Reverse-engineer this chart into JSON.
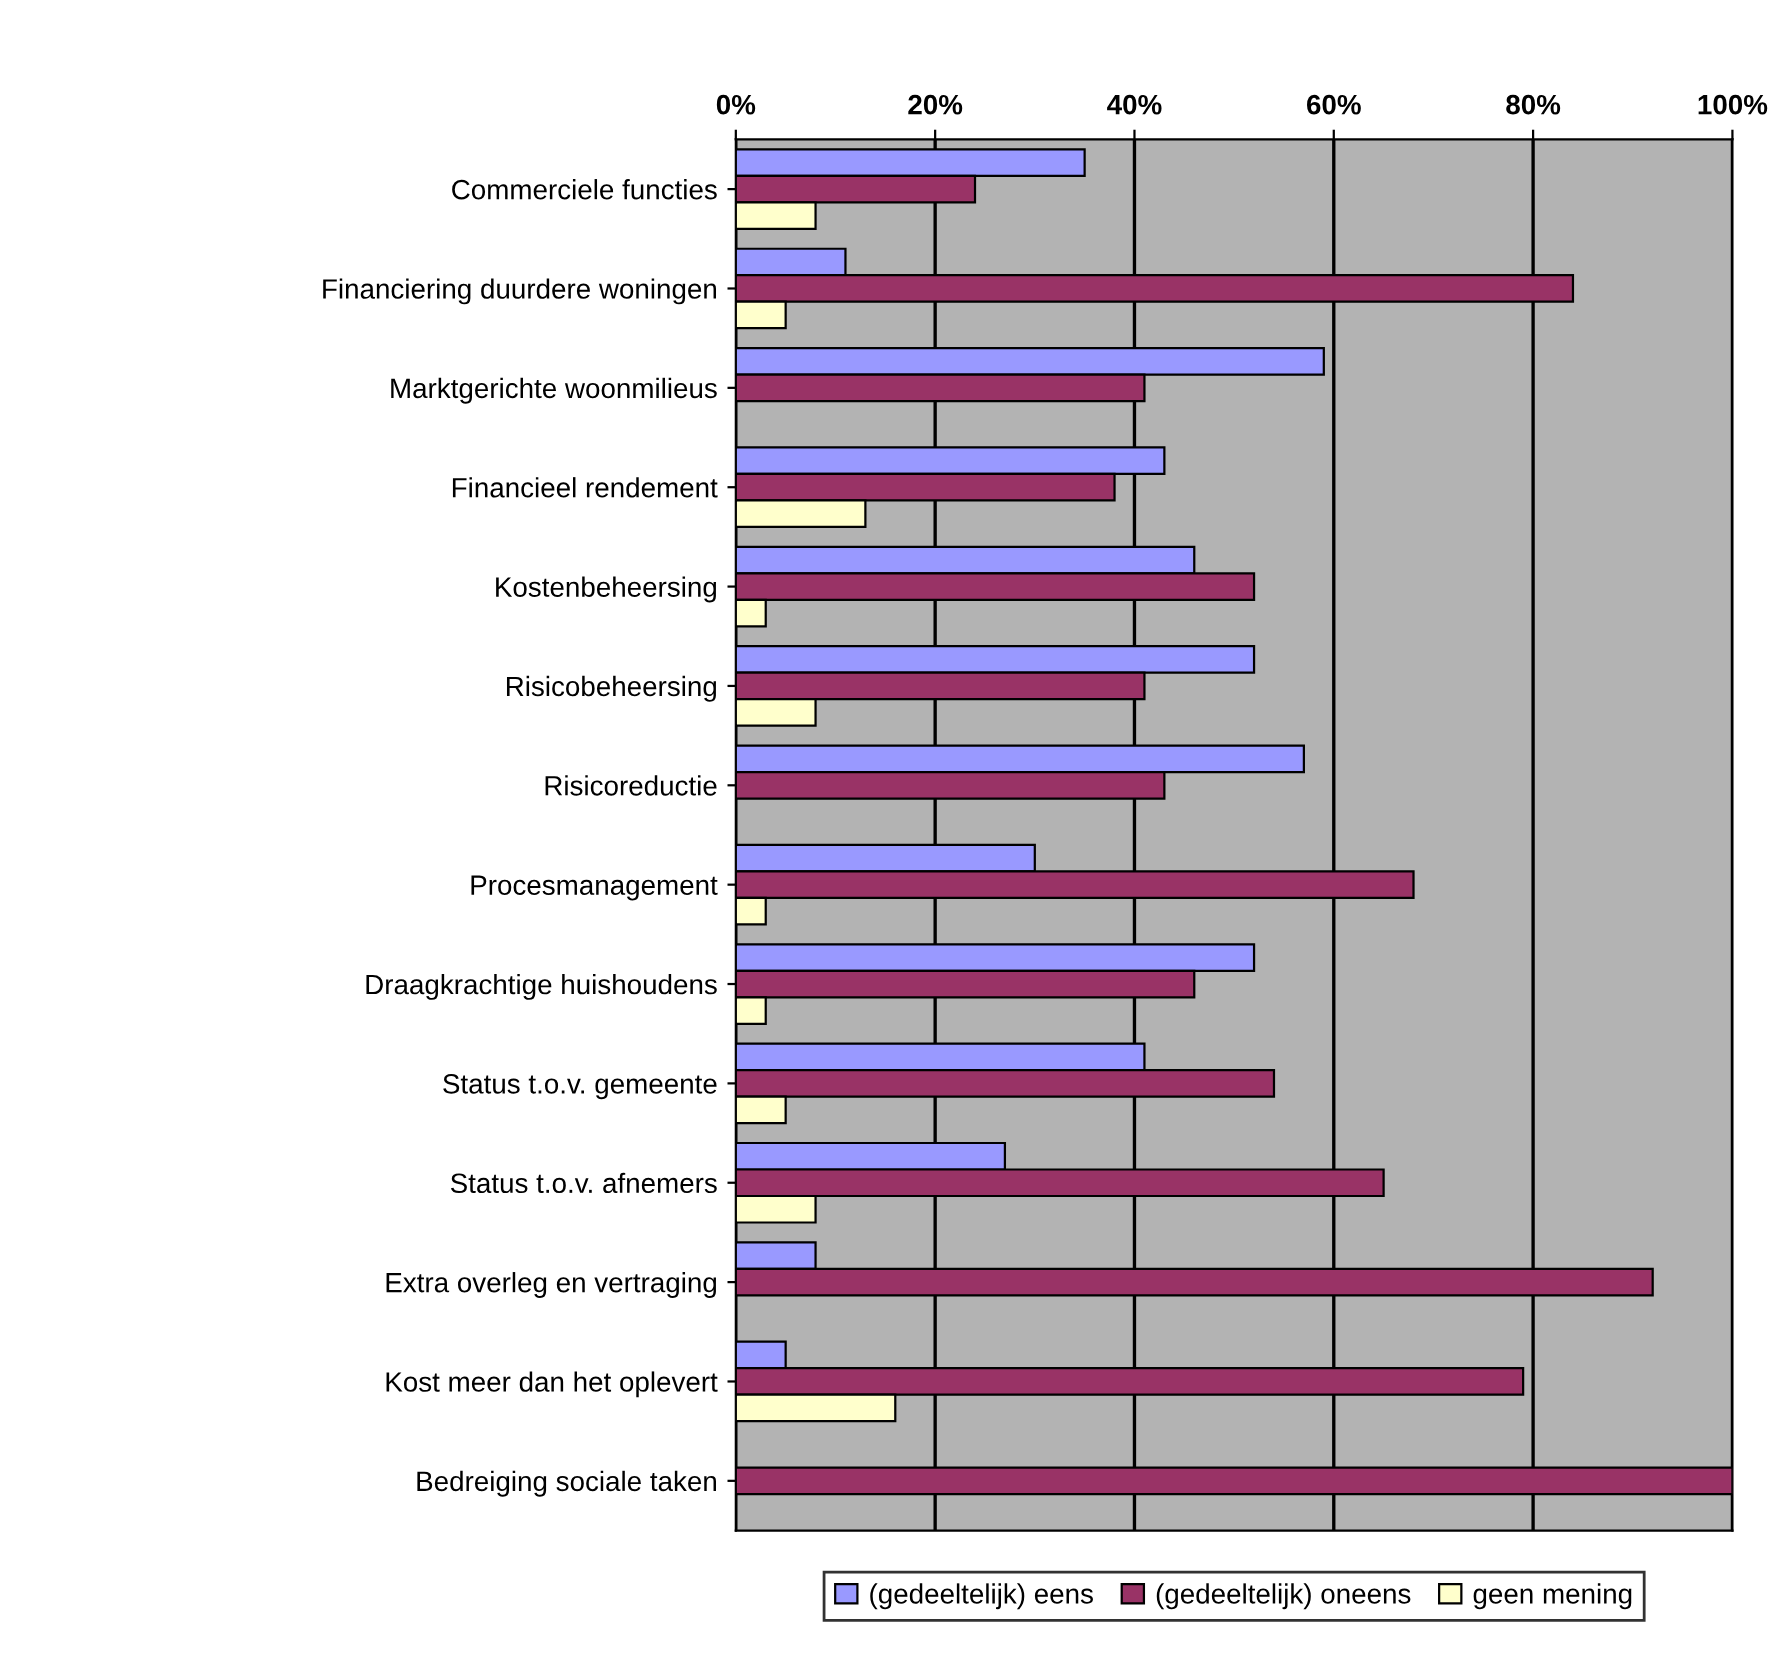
{
  "chart_data": {
    "type": "bar",
    "orientation": "horizontal",
    "categories": [
      "Commerciele functies",
      "Financiering duurdere woningen",
      "Marktgerichte woonmilieus",
      "Financieel rendement",
      "Kostenbeheersing",
      "Risicobeheersing",
      "Risicoreductie",
      "Procesmanagement",
      "Draagkrachtige huishoudens",
      "Status t.o.v. gemeente",
      "Status t.o.v. afnemers",
      "Extra overleg en vertraging",
      "Kost meer dan het oplevert",
      "Bedreiging sociale taken"
    ],
    "series": [
      {
        "name": "(gedeeltelijk) eens",
        "color": "#9999ff",
        "values": [
          35,
          11,
          59,
          43,
          46,
          52,
          57,
          30,
          52,
          41,
          27,
          8,
          5,
          null
        ]
      },
      {
        "name": "(gedeeltelijk) oneens",
        "color": "#993366",
        "values": [
          24,
          84,
          41,
          38,
          52,
          41,
          43,
          68,
          46,
          54,
          65,
          92,
          79,
          100
        ]
      },
      {
        "name": "geen mening",
        "color": "#ffffcc",
        "values": [
          8,
          5,
          null,
          13,
          3,
          8,
          null,
          3,
          3,
          5,
          8,
          null,
          16,
          null
        ]
      }
    ],
    "xlim": [
      0,
      100
    ],
    "xticks": [
      {
        "value": 0,
        "label": "0%"
      },
      {
        "value": 20,
        "label": "20%"
      },
      {
        "value": 40,
        "label": "40%"
      },
      {
        "value": 60,
        "label": "60%"
      },
      {
        "value": 80,
        "label": "80%"
      },
      {
        "value": 100,
        "label": "100%"
      }
    ],
    "grid": "x",
    "legend": "bottom"
  }
}
